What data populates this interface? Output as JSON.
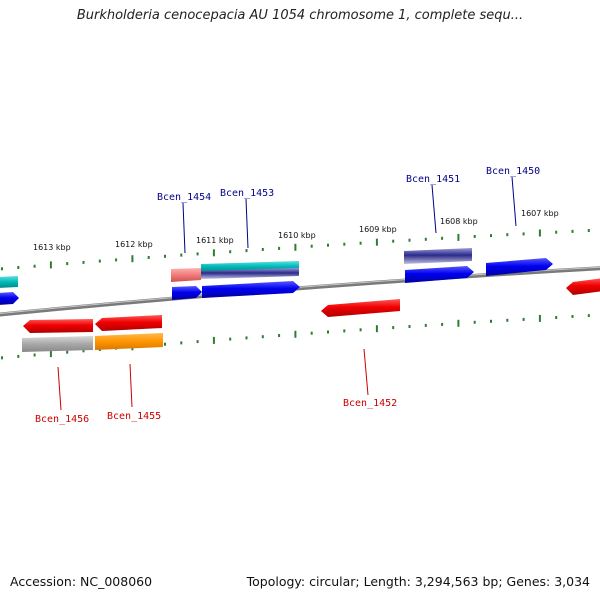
{
  "title": "Burkholderia cenocepacia AU 1054 chromosome 1, complete sequ...",
  "footer": {
    "accession": "Accession: NC_008060",
    "stats": "Topology: circular; Length: 3,294,563 bp; Genes: 3,034"
  },
  "colors": {
    "forward_label": "#00008b",
    "reverse_label": "#cc0000",
    "tick": "#2e7d32",
    "backbone": "#8a8a8a"
  },
  "kbp_labels": [
    "1613 kbp",
    "1612 kbp",
    "1611 kbp",
    "1610 kbp",
    "1609 kbp",
    "1608 kbp",
    "1607 kbp"
  ],
  "genes": {
    "forward": [
      "Bcen_1454",
      "Bcen_1453",
      "Bcen_1451",
      "Bcen_1450"
    ],
    "reverse": [
      "Bcen_1456",
      "Bcen_1455",
      "Bcen_1452"
    ]
  }
}
